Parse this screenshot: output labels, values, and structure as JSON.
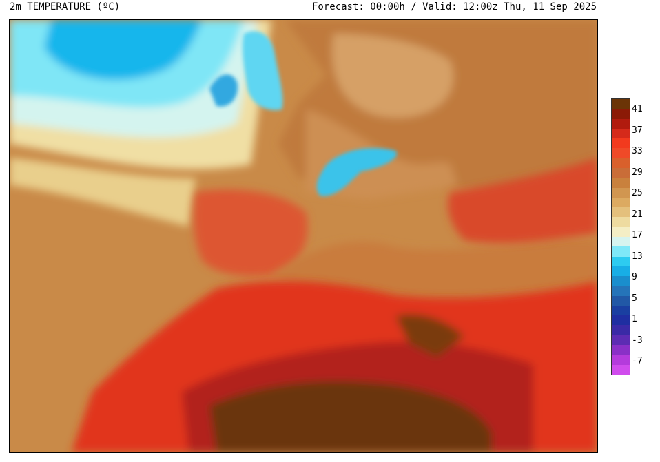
{
  "header": {
    "title": "2m TEMPERATURE (ºC)",
    "subtitle": "Forecast: 00:00h / Valid: 12:00z Thu, 11 Sep 2025"
  },
  "legend": {
    "labels": [
      "41",
      "37",
      "33",
      "29",
      "25",
      "21",
      "17",
      "13",
      "9",
      "5",
      "1",
      "-3",
      "-7"
    ],
    "colors": [
      "#6b3406",
      "#8b1a06",
      "#b11b0e",
      "#d52a1a",
      "#f23a1e",
      "#ef4a28",
      "#d9602c",
      "#c96d38",
      "#c9813d",
      "#d19650",
      "#dcaa61",
      "#e4c07c",
      "#eedba0",
      "#f4eec5",
      "#d6f4ef",
      "#7fe8f8",
      "#2dcbf0",
      "#18aee6",
      "#1a8ecd",
      "#2574b9",
      "#2158a6",
      "#1a3fa1",
      "#1f2ea1",
      "#3a2aa6",
      "#5d2cb3",
      "#8a30c7",
      "#b43bdc",
      "#d04ced"
    ]
  }
}
